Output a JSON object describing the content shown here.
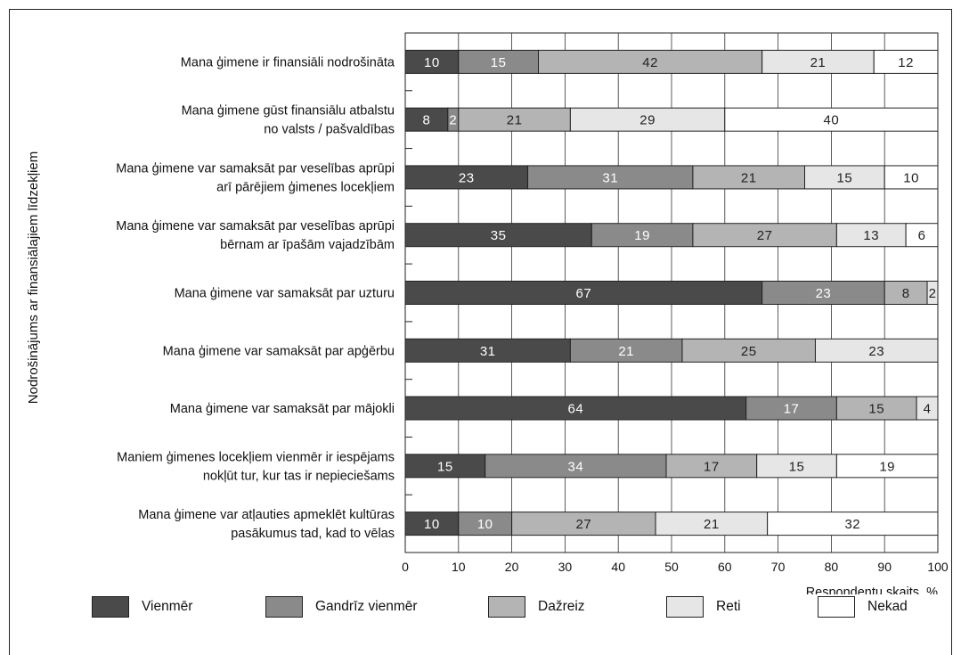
{
  "chart_data": {
    "type": "bar",
    "orientation": "horizontal",
    "stacked": true,
    "ylabel": "Nodrošinājums ar finansiālajiem līdzekļiem",
    "xlabel": "Respondentu skaits, %",
    "xlim": [
      0,
      100
    ],
    "xticks": [
      "0",
      "10",
      "20",
      "30",
      "40",
      "50",
      "60",
      "70",
      "80",
      "90",
      "100"
    ],
    "grid": true,
    "legend_position": "bottom",
    "categories": [
      [
        "Mana ģimene ir finansiāli nodrošināta"
      ],
      [
        "Mana ģimene gūst finansiālu atbalstu",
        "no valsts / pašvaldības"
      ],
      [
        "Mana ģimene var samaksāt par veselības aprūpi",
        "arī pārējiem ģimenes locekļiem"
      ],
      [
        "Mana ģimene var samaksāt par veselības aprūpi",
        "bērnam ar īpašām vajadzībām"
      ],
      [
        "Mana ģimene var samaksāt par uzturu"
      ],
      [
        "Mana ģimene var samaksāt par apģērbu"
      ],
      [
        "Mana ģimene var samaksāt par mājokli"
      ],
      [
        "Maniem ģimenes locekļiem vienmēr ir iespējams",
        "nokļūt tur, kur tas ir nepieciešams"
      ],
      [
        "Mana ģimene var atļauties apmeklēt kultūras",
        "pasākumus tad, kad to vēlas"
      ]
    ],
    "series": [
      {
        "name": "Vienmēr",
        "color": "#4a4a4a",
        "text_color": "#ffffff",
        "values": [
          10,
          8,
          23,
          35,
          67,
          31,
          64,
          15,
          10
        ]
      },
      {
        "name": "Gandrīz vienmēr",
        "color": "#8a8a8a",
        "text_color": "#ffffff",
        "values": [
          15,
          2,
          31,
          19,
          23,
          21,
          17,
          34,
          10
        ]
      },
      {
        "name": "Dažreiz",
        "color": "#b4b4b4",
        "text_color": "#222222",
        "values": [
          42,
          21,
          21,
          27,
          8,
          25,
          15,
          17,
          27
        ]
      },
      {
        "name": "Reti",
        "color": "#e6e6e6",
        "text_color": "#222222",
        "values": [
          21,
          29,
          15,
          13,
          2,
          23,
          4,
          15,
          21
        ]
      },
      {
        "name": "Nekad",
        "color": "#ffffff",
        "text_color": "#222222",
        "values": [
          12,
          40,
          10,
          6,
          0,
          0,
          0,
          19,
          32
        ]
      }
    ]
  }
}
